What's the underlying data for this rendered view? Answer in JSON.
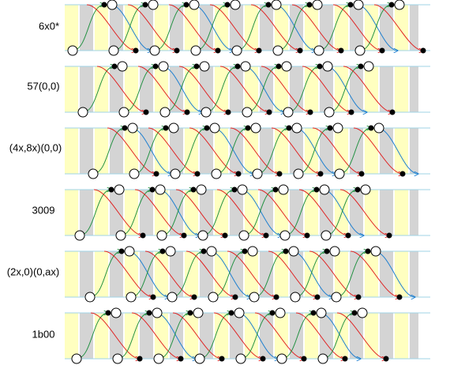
{
  "rows": [
    {
      "label": "6x0*"
    },
    {
      "label": "57(0,0)"
    },
    {
      "label": "(4x,8x)(0,0)"
    },
    {
      "label": "3009"
    },
    {
      "label": "(2x,0)(0,ax)"
    },
    {
      "label": "1b00"
    }
  ]
}
